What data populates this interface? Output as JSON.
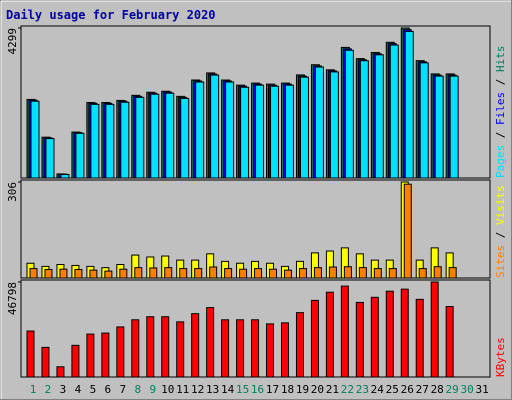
{
  "title": "Daily usage for February 2020",
  "legend_separator": " / ",
  "chart_data": [
    {
      "type": "bar",
      "ylim": [
        0,
        4299
      ],
      "yticks": [
        4299
      ],
      "series": [
        {
          "name": "Hits",
          "color": "#00805c",
          "values": [
            2252,
            1170,
            117,
            1316,
            2164,
            2164,
            2223,
            2369,
            2457,
            2486,
            2340,
            2808,
            3012,
            2808,
            2661,
            2720,
            2691,
            2720,
            2954,
            3246,
            3100,
            3743,
            3422,
            3597,
            3890,
            4299,
            3363,
            2983,
            2983,
            null,
            null
          ]
        },
        {
          "name": "Files",
          "color": "#0000ff",
          "values": [
            2230,
            1150,
            110,
            1300,
            2140,
            2140,
            2200,
            2340,
            2430,
            2460,
            2310,
            2780,
            2980,
            2780,
            2630,
            2690,
            2660,
            2690,
            2920,
            3210,
            3070,
            3700,
            3390,
            3560,
            3850,
            4250,
            3330,
            2950,
            2950,
            null,
            null
          ]
        },
        {
          "name": "Pages",
          "color": "#00e0ff",
          "values": [
            2200,
            1130,
            100,
            1280,
            2110,
            2110,
            2170,
            2310,
            2400,
            2430,
            2280,
            2750,
            2950,
            2750,
            2600,
            2660,
            2630,
            2660,
            2890,
            3180,
            3040,
            3660,
            3360,
            3530,
            3810,
            4200,
            3300,
            2920,
            2920,
            null,
            null
          ]
        }
      ]
    },
    {
      "type": "bar",
      "ylim": [
        0,
        306
      ],
      "yticks": [
        306
      ],
      "series": [
        {
          "name": "Visits",
          "color": "#ffff00",
          "values": [
            47,
            37,
            43,
            40,
            37,
            33,
            43,
            73,
            67,
            70,
            57,
            57,
            77,
            53,
            47,
            53,
            47,
            37,
            53,
            80,
            86,
            96,
            77,
            57,
            57,
            306,
            57,
            96,
            80,
            null,
            null
          ]
        },
        {
          "name": "Sites",
          "color": "#ff8000",
          "values": [
            30,
            27,
            28,
            27,
            25,
            22,
            28,
            33,
            32,
            33,
            30,
            30,
            35,
            30,
            28,
            30,
            28,
            25,
            30,
            33,
            35,
            36,
            33,
            30,
            30,
            299,
            30,
            36,
            33,
            null,
            null
          ]
        }
      ]
    },
    {
      "type": "bar",
      "ylim": [
        0,
        46798
      ],
      "yticks": [
        46798
      ],
      "categories": [
        "1",
        "2",
        "3",
        "4",
        "5",
        "6",
        "7",
        "8",
        "9",
        "10",
        "11",
        "12",
        "13",
        "14",
        "15",
        "16",
        "17",
        "18",
        "19",
        "20",
        "21",
        "22",
        "23",
        "24",
        "25",
        "26",
        "27",
        "28",
        "29",
        "30",
        "31"
      ],
      "category_colors": [
        "#00805c",
        "#00805c",
        "#000000",
        "#000000",
        "#000000",
        "#000000",
        "#000000",
        "#00805c",
        "#00805c",
        "#000000",
        "#000000",
        "#000000",
        "#000000",
        "#000000",
        "#00805c",
        "#00805c",
        "#000000",
        "#000000",
        "#000000",
        "#000000",
        "#000000",
        "#00805c",
        "#00805c",
        "#000000",
        "#000000",
        "#000000",
        "#000000",
        "#000000",
        "#00805c",
        "#00805c",
        "#000000"
      ],
      "series": [
        {
          "name": "KBytes",
          "color": "#ff0000",
          "values": [
            22644,
            14593,
            5032,
            15599,
            21134,
            21638,
            24657,
            28179,
            29689,
            29689,
            27173,
            31199,
            34218,
            28179,
            28179,
            28179,
            26166,
            26670,
            31702,
            37740,
            41766,
            44785,
            36734,
            39250,
            42269,
            43275,
            38243,
            46798,
            34721,
            null,
            null
          ]
        }
      ]
    }
  ]
}
